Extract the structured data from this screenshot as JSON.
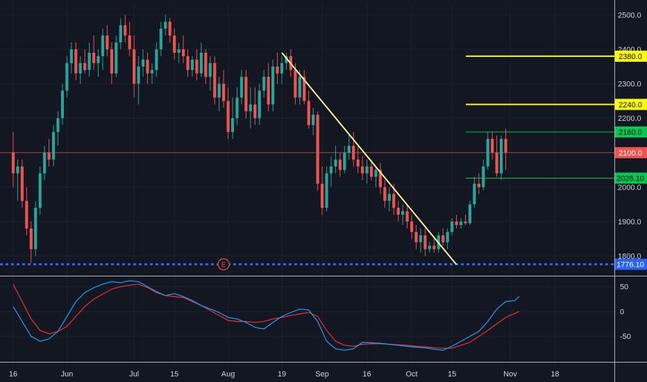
{
  "chart_data": {
    "type": "candlestick",
    "price_axis": {
      "ticks": [
        "1800.0",
        "1900.0",
        "2000.0",
        "2100.0",
        "2200.0",
        "2300.0",
        "2400.0",
        "2500.0"
      ],
      "tick_values": [
        1800,
        1900,
        2000,
        2100,
        2200,
        2300,
        2400,
        2500
      ],
      "ylim": [
        1765,
        2535
      ]
    },
    "time_axis": {
      "labels": [
        "16",
        "Jun",
        "Jul",
        "15",
        "Aug",
        "19",
        "Sep",
        "16",
        "Oct",
        "15",
        "Nov",
        "18"
      ],
      "label_bar_index": [
        0,
        12,
        27,
        36,
        48,
        60,
        69,
        79,
        89,
        98,
        111,
        121
      ]
    },
    "candles": [
      {
        "o": 2100,
        "h": 2160,
        "l": 2000,
        "c": 2040
      },
      {
        "o": 2040,
        "h": 2080,
        "l": 1960,
        "c": 2060
      },
      {
        "o": 2060,
        "h": 2080,
        "l": 1940,
        "c": 1960
      },
      {
        "o": 1960,
        "h": 2000,
        "l": 1860,
        "c": 1880
      },
      {
        "o": 1880,
        "h": 1900,
        "l": 1780,
        "c": 1820
      },
      {
        "o": 1820,
        "h": 1960,
        "l": 1800,
        "c": 1940
      },
      {
        "o": 1940,
        "h": 2060,
        "l": 1920,
        "c": 2040
      },
      {
        "o": 2040,
        "h": 2120,
        "l": 2020,
        "c": 2100
      },
      {
        "o": 2100,
        "h": 2140,
        "l": 2060,
        "c": 2080
      },
      {
        "o": 2080,
        "h": 2180,
        "l": 2060,
        "c": 2160
      },
      {
        "o": 2160,
        "h": 2220,
        "l": 2120,
        "c": 2200
      },
      {
        "o": 2200,
        "h": 2300,
        "l": 2180,
        "c": 2280
      },
      {
        "o": 2280,
        "h": 2380,
        "l": 2260,
        "c": 2360
      },
      {
        "o": 2360,
        "h": 2420,
        "l": 2330,
        "c": 2400
      },
      {
        "o": 2400,
        "h": 2420,
        "l": 2310,
        "c": 2330
      },
      {
        "o": 2330,
        "h": 2380,
        "l": 2300,
        "c": 2360
      },
      {
        "o": 2360,
        "h": 2400,
        "l": 2330,
        "c": 2340
      },
      {
        "o": 2340,
        "h": 2420,
        "l": 2320,
        "c": 2390
      },
      {
        "o": 2390,
        "h": 2440,
        "l": 2340,
        "c": 2360
      },
      {
        "o": 2360,
        "h": 2400,
        "l": 2320,
        "c": 2380
      },
      {
        "o": 2380,
        "h": 2460,
        "l": 2340,
        "c": 2440
      },
      {
        "o": 2440,
        "h": 2470,
        "l": 2380,
        "c": 2400
      },
      {
        "o": 2400,
        "h": 2420,
        "l": 2300,
        "c": 2330
      },
      {
        "o": 2330,
        "h": 2440,
        "l": 2320,
        "c": 2420
      },
      {
        "o": 2420,
        "h": 2490,
        "l": 2400,
        "c": 2470
      },
      {
        "o": 2470,
        "h": 2500,
        "l": 2420,
        "c": 2440
      },
      {
        "o": 2440,
        "h": 2480,
        "l": 2380,
        "c": 2400
      },
      {
        "o": 2400,
        "h": 2440,
        "l": 2260,
        "c": 2300
      },
      {
        "o": 2300,
        "h": 2380,
        "l": 2240,
        "c": 2350
      },
      {
        "o": 2350,
        "h": 2400,
        "l": 2320,
        "c": 2370
      },
      {
        "o": 2370,
        "h": 2390,
        "l": 2300,
        "c": 2330
      },
      {
        "o": 2330,
        "h": 2360,
        "l": 2300,
        "c": 2340
      },
      {
        "o": 2340,
        "h": 2420,
        "l": 2320,
        "c": 2400
      },
      {
        "o": 2400,
        "h": 2480,
        "l": 2380,
        "c": 2460
      },
      {
        "o": 2460,
        "h": 2500,
        "l": 2440,
        "c": 2480
      },
      {
        "o": 2480,
        "h": 2490,
        "l": 2420,
        "c": 2440
      },
      {
        "o": 2440,
        "h": 2460,
        "l": 2370,
        "c": 2390
      },
      {
        "o": 2390,
        "h": 2420,
        "l": 2360,
        "c": 2400
      },
      {
        "o": 2400,
        "h": 2440,
        "l": 2360,
        "c": 2380
      },
      {
        "o": 2380,
        "h": 2400,
        "l": 2320,
        "c": 2340
      },
      {
        "o": 2340,
        "h": 2380,
        "l": 2320,
        "c": 2370
      },
      {
        "o": 2370,
        "h": 2400,
        "l": 2310,
        "c": 2330
      },
      {
        "o": 2330,
        "h": 2420,
        "l": 2320,
        "c": 2390
      },
      {
        "o": 2390,
        "h": 2400,
        "l": 2300,
        "c": 2320
      },
      {
        "o": 2320,
        "h": 2380,
        "l": 2280,
        "c": 2360
      },
      {
        "o": 2360,
        "h": 2380,
        "l": 2240,
        "c": 2260
      },
      {
        "o": 2260,
        "h": 2320,
        "l": 2220,
        "c": 2300
      },
      {
        "o": 2300,
        "h": 2340,
        "l": 2230,
        "c": 2250
      },
      {
        "o": 2250,
        "h": 2290,
        "l": 2140,
        "c": 2160
      },
      {
        "o": 2160,
        "h": 2260,
        "l": 2140,
        "c": 2200
      },
      {
        "o": 2200,
        "h": 2290,
        "l": 2180,
        "c": 2260
      },
      {
        "o": 2260,
        "h": 2340,
        "l": 2240,
        "c": 2320
      },
      {
        "o": 2320,
        "h": 2340,
        "l": 2200,
        "c": 2220
      },
      {
        "o": 2220,
        "h": 2290,
        "l": 2170,
        "c": 2240
      },
      {
        "o": 2240,
        "h": 2290,
        "l": 2180,
        "c": 2200
      },
      {
        "o": 2200,
        "h": 2300,
        "l": 2180,
        "c": 2280
      },
      {
        "o": 2280,
        "h": 2340,
        "l": 2260,
        "c": 2320
      },
      {
        "o": 2320,
        "h": 2360,
        "l": 2220,
        "c": 2240
      },
      {
        "o": 2240,
        "h": 2370,
        "l": 2220,
        "c": 2350
      },
      {
        "o": 2350,
        "h": 2390,
        "l": 2300,
        "c": 2330
      },
      {
        "o": 2330,
        "h": 2380,
        "l": 2300,
        "c": 2360
      },
      {
        "o": 2360,
        "h": 2390,
        "l": 2340,
        "c": 2380
      },
      {
        "o": 2380,
        "h": 2400,
        "l": 2320,
        "c": 2340
      },
      {
        "o": 2340,
        "h": 2360,
        "l": 2240,
        "c": 2260
      },
      {
        "o": 2260,
        "h": 2340,
        "l": 2240,
        "c": 2320
      },
      {
        "o": 2320,
        "h": 2340,
        "l": 2240,
        "c": 2250
      },
      {
        "o": 2250,
        "h": 2280,
        "l": 2170,
        "c": 2180
      },
      {
        "o": 2180,
        "h": 2230,
        "l": 2150,
        "c": 2210
      },
      {
        "o": 2210,
        "h": 2220,
        "l": 1990,
        "c": 2010
      },
      {
        "o": 2010,
        "h": 2060,
        "l": 1920,
        "c": 1940
      },
      {
        "o": 1940,
        "h": 2060,
        "l": 1930,
        "c": 2040
      },
      {
        "o": 2040,
        "h": 2090,
        "l": 2000,
        "c": 2060
      },
      {
        "o": 2060,
        "h": 2120,
        "l": 2040,
        "c": 2080
      },
      {
        "o": 2080,
        "h": 2100,
        "l": 2030,
        "c": 2050
      },
      {
        "o": 2050,
        "h": 2120,
        "l": 2040,
        "c": 2100
      },
      {
        "o": 2100,
        "h": 2150,
        "l": 2080,
        "c": 2120
      },
      {
        "o": 2120,
        "h": 2160,
        "l": 2060,
        "c": 2080
      },
      {
        "o": 2080,
        "h": 2120,
        "l": 2040,
        "c": 2060
      },
      {
        "o": 2060,
        "h": 2090,
        "l": 2020,
        "c": 2040
      },
      {
        "o": 2040,
        "h": 2080,
        "l": 2010,
        "c": 2060
      },
      {
        "o": 2060,
        "h": 2080,
        "l": 2020,
        "c": 2030
      },
      {
        "o": 2030,
        "h": 2060,
        "l": 2000,
        "c": 2050
      },
      {
        "o": 2050,
        "h": 2070,
        "l": 1980,
        "c": 2000
      },
      {
        "o": 2000,
        "h": 2020,
        "l": 1940,
        "c": 1960
      },
      {
        "o": 1960,
        "h": 2000,
        "l": 1930,
        "c": 1980
      },
      {
        "o": 1980,
        "h": 2010,
        "l": 1920,
        "c": 1940
      },
      {
        "o": 1940,
        "h": 1960,
        "l": 1900,
        "c": 1920
      },
      {
        "o": 1920,
        "h": 1950,
        "l": 1890,
        "c": 1930
      },
      {
        "o": 1930,
        "h": 1950,
        "l": 1880,
        "c": 1900
      },
      {
        "o": 1900,
        "h": 1920,
        "l": 1850,
        "c": 1870
      },
      {
        "o": 1870,
        "h": 1890,
        "l": 1820,
        "c": 1840
      },
      {
        "o": 1840,
        "h": 1880,
        "l": 1810,
        "c": 1860
      },
      {
        "o": 1860,
        "h": 1880,
        "l": 1800,
        "c": 1820
      },
      {
        "o": 1820,
        "h": 1840,
        "l": 1810,
        "c": 1830
      },
      {
        "o": 1830,
        "h": 1850,
        "l": 1810,
        "c": 1820
      },
      {
        "o": 1820,
        "h": 1870,
        "l": 1810,
        "c": 1860
      },
      {
        "o": 1860,
        "h": 1880,
        "l": 1830,
        "c": 1840
      },
      {
        "o": 1840,
        "h": 1880,
        "l": 1820,
        "c": 1870
      },
      {
        "o": 1870,
        "h": 1910,
        "l": 1860,
        "c": 1900
      },
      {
        "o": 1900,
        "h": 1920,
        "l": 1880,
        "c": 1890
      },
      {
        "o": 1890,
        "h": 1910,
        "l": 1880,
        "c": 1900
      },
      {
        "o": 1900,
        "h": 1920,
        "l": 1890,
        "c": 1895
      },
      {
        "o": 1895,
        "h": 1960,
        "l": 1890,
        "c": 1950
      },
      {
        "o": 1950,
        "h": 2030,
        "l": 1940,
        "c": 2010
      },
      {
        "o": 2010,
        "h": 2040,
        "l": 1980,
        "c": 2000
      },
      {
        "o": 2000,
        "h": 2080,
        "l": 1990,
        "c": 2060
      },
      {
        "o": 2060,
        "h": 2160,
        "l": 2050,
        "c": 2140
      },
      {
        "o": 2140,
        "h": 2160,
        "l": 2080,
        "c": 2100
      },
      {
        "o": 2100,
        "h": 2150,
        "l": 2030,
        "c": 2040
      },
      {
        "o": 2040,
        "h": 2150,
        "l": 2020,
        "c": 2140
      },
      {
        "o": 2140,
        "h": 2170,
        "l": 2050,
        "c": 2100
      }
    ],
    "trendline": {
      "from": {
        "bar": 60,
        "price": 2390
      },
      "to": {
        "bar": 99,
        "price": 1775
      }
    },
    "levels": [
      {
        "label": "2380.0",
        "value": 2380,
        "color": "#ffff00",
        "kind": "drawn"
      },
      {
        "label": "2240.0",
        "value": 2240,
        "color": "#ffff00",
        "kind": "drawn"
      },
      {
        "label": "2160.0",
        "value": 2160,
        "color": "#00c853",
        "kind": "drawn"
      },
      {
        "label": "2100.0",
        "value": 2100,
        "color": "#ef5350",
        "kind": "last-price"
      },
      {
        "label": "2026.10",
        "value": 2026.1,
        "color": "#00c853",
        "kind": "drawn"
      },
      {
        "label": "1776.10",
        "value": 1776.1,
        "color": "#2962ff",
        "kind": "dashed"
      }
    ],
    "event_marker": {
      "label": "E",
      "bar": 47
    },
    "oscillator": {
      "ticks": [
        "50",
        "0",
        "-50"
      ],
      "tick_values": [
        50,
        0,
        -50
      ],
      "ylim": [
        -100,
        65
      ],
      "fast": [
        [
          0,
          10
        ],
        [
          2,
          -20
        ],
        [
          4,
          -50
        ],
        [
          6,
          -60
        ],
        [
          8,
          -55
        ],
        [
          10,
          -40
        ],
        [
          12,
          -10
        ],
        [
          14,
          20
        ],
        [
          16,
          38
        ],
        [
          18,
          48
        ],
        [
          20,
          55
        ],
        [
          22,
          60
        ],
        [
          24,
          58
        ],
        [
          26,
          62
        ],
        [
          28,
          60
        ],
        [
          30,
          50
        ],
        [
          32,
          40
        ],
        [
          34,
          32
        ],
        [
          36,
          36
        ],
        [
          38,
          30
        ],
        [
          40,
          22
        ],
        [
          42,
          12
        ],
        [
          44,
          5
        ],
        [
          46,
          -2
        ],
        [
          48,
          -12
        ],
        [
          50,
          -15
        ],
        [
          52,
          -22
        ],
        [
          54,
          -32
        ],
        [
          56,
          -35
        ],
        [
          58,
          -22
        ],
        [
          60,
          -10
        ],
        [
          62,
          -2
        ],
        [
          64,
          5
        ],
        [
          66,
          3
        ],
        [
          68,
          -20
        ],
        [
          70,
          -60
        ],
        [
          72,
          -75
        ],
        [
          74,
          -78
        ],
        [
          76,
          -75
        ],
        [
          78,
          -62
        ],
        [
          80,
          -63
        ],
        [
          82,
          -64
        ],
        [
          84,
          -66
        ],
        [
          86,
          -68
        ],
        [
          88,
          -70
        ],
        [
          90,
          -72
        ],
        [
          92,
          -73
        ],
        [
          94,
          -76
        ],
        [
          96,
          -78
        ],
        [
          98,
          -70
        ],
        [
          100,
          -60
        ],
        [
          102,
          -50
        ],
        [
          104,
          -40
        ],
        [
          106,
          -20
        ],
        [
          108,
          5
        ],
        [
          110,
          20
        ],
        [
          112,
          22
        ],
        [
          113,
          30
        ]
      ],
      "slow": [
        [
          0,
          55
        ],
        [
          2,
          20
        ],
        [
          4,
          -15
        ],
        [
          6,
          -38
        ],
        [
          8,
          -45
        ],
        [
          10,
          -40
        ],
        [
          12,
          -30
        ],
        [
          14,
          -10
        ],
        [
          16,
          10
        ],
        [
          18,
          25
        ],
        [
          20,
          35
        ],
        [
          22,
          45
        ],
        [
          24,
          50
        ],
        [
          26,
          53
        ],
        [
          28,
          55
        ],
        [
          30,
          48
        ],
        [
          32,
          38
        ],
        [
          34,
          32
        ],
        [
          36,
          30
        ],
        [
          38,
          28
        ],
        [
          40,
          20
        ],
        [
          42,
          12
        ],
        [
          44,
          2
        ],
        [
          46,
          -8
        ],
        [
          48,
          -18
        ],
        [
          50,
          -20
        ],
        [
          52,
          -20
        ],
        [
          54,
          -22
        ],
        [
          56,
          -20
        ],
        [
          58,
          -15
        ],
        [
          60,
          -12
        ],
        [
          62,
          -8
        ],
        [
          64,
          -5
        ],
        [
          66,
          -2
        ],
        [
          68,
          -10
        ],
        [
          70,
          -38
        ],
        [
          72,
          -60
        ],
        [
          74,
          -68
        ],
        [
          76,
          -70
        ],
        [
          78,
          -66
        ],
        [
          80,
          -65
        ],
        [
          82,
          -65
        ],
        [
          84,
          -66
        ],
        [
          86,
          -67
        ],
        [
          88,
          -68
        ],
        [
          90,
          -70
        ],
        [
          92,
          -71
        ],
        [
          94,
          -73
        ],
        [
          96,
          -74
        ],
        [
          98,
          -74
        ],
        [
          100,
          -68
        ],
        [
          102,
          -62
        ],
        [
          104,
          -50
        ],
        [
          106,
          -38
        ],
        [
          108,
          -25
        ],
        [
          110,
          -12
        ],
        [
          113,
          0
        ]
      ],
      "colors": {
        "fast": "#2196f3",
        "slow": "#e0312f"
      }
    },
    "colors": {
      "background": "#131722",
      "up": "#26a69a",
      "down": "#ef5350",
      "grid": "#1e222d",
      "axis_text": "#d1d4dc",
      "trendline": "#fff59d"
    }
  }
}
